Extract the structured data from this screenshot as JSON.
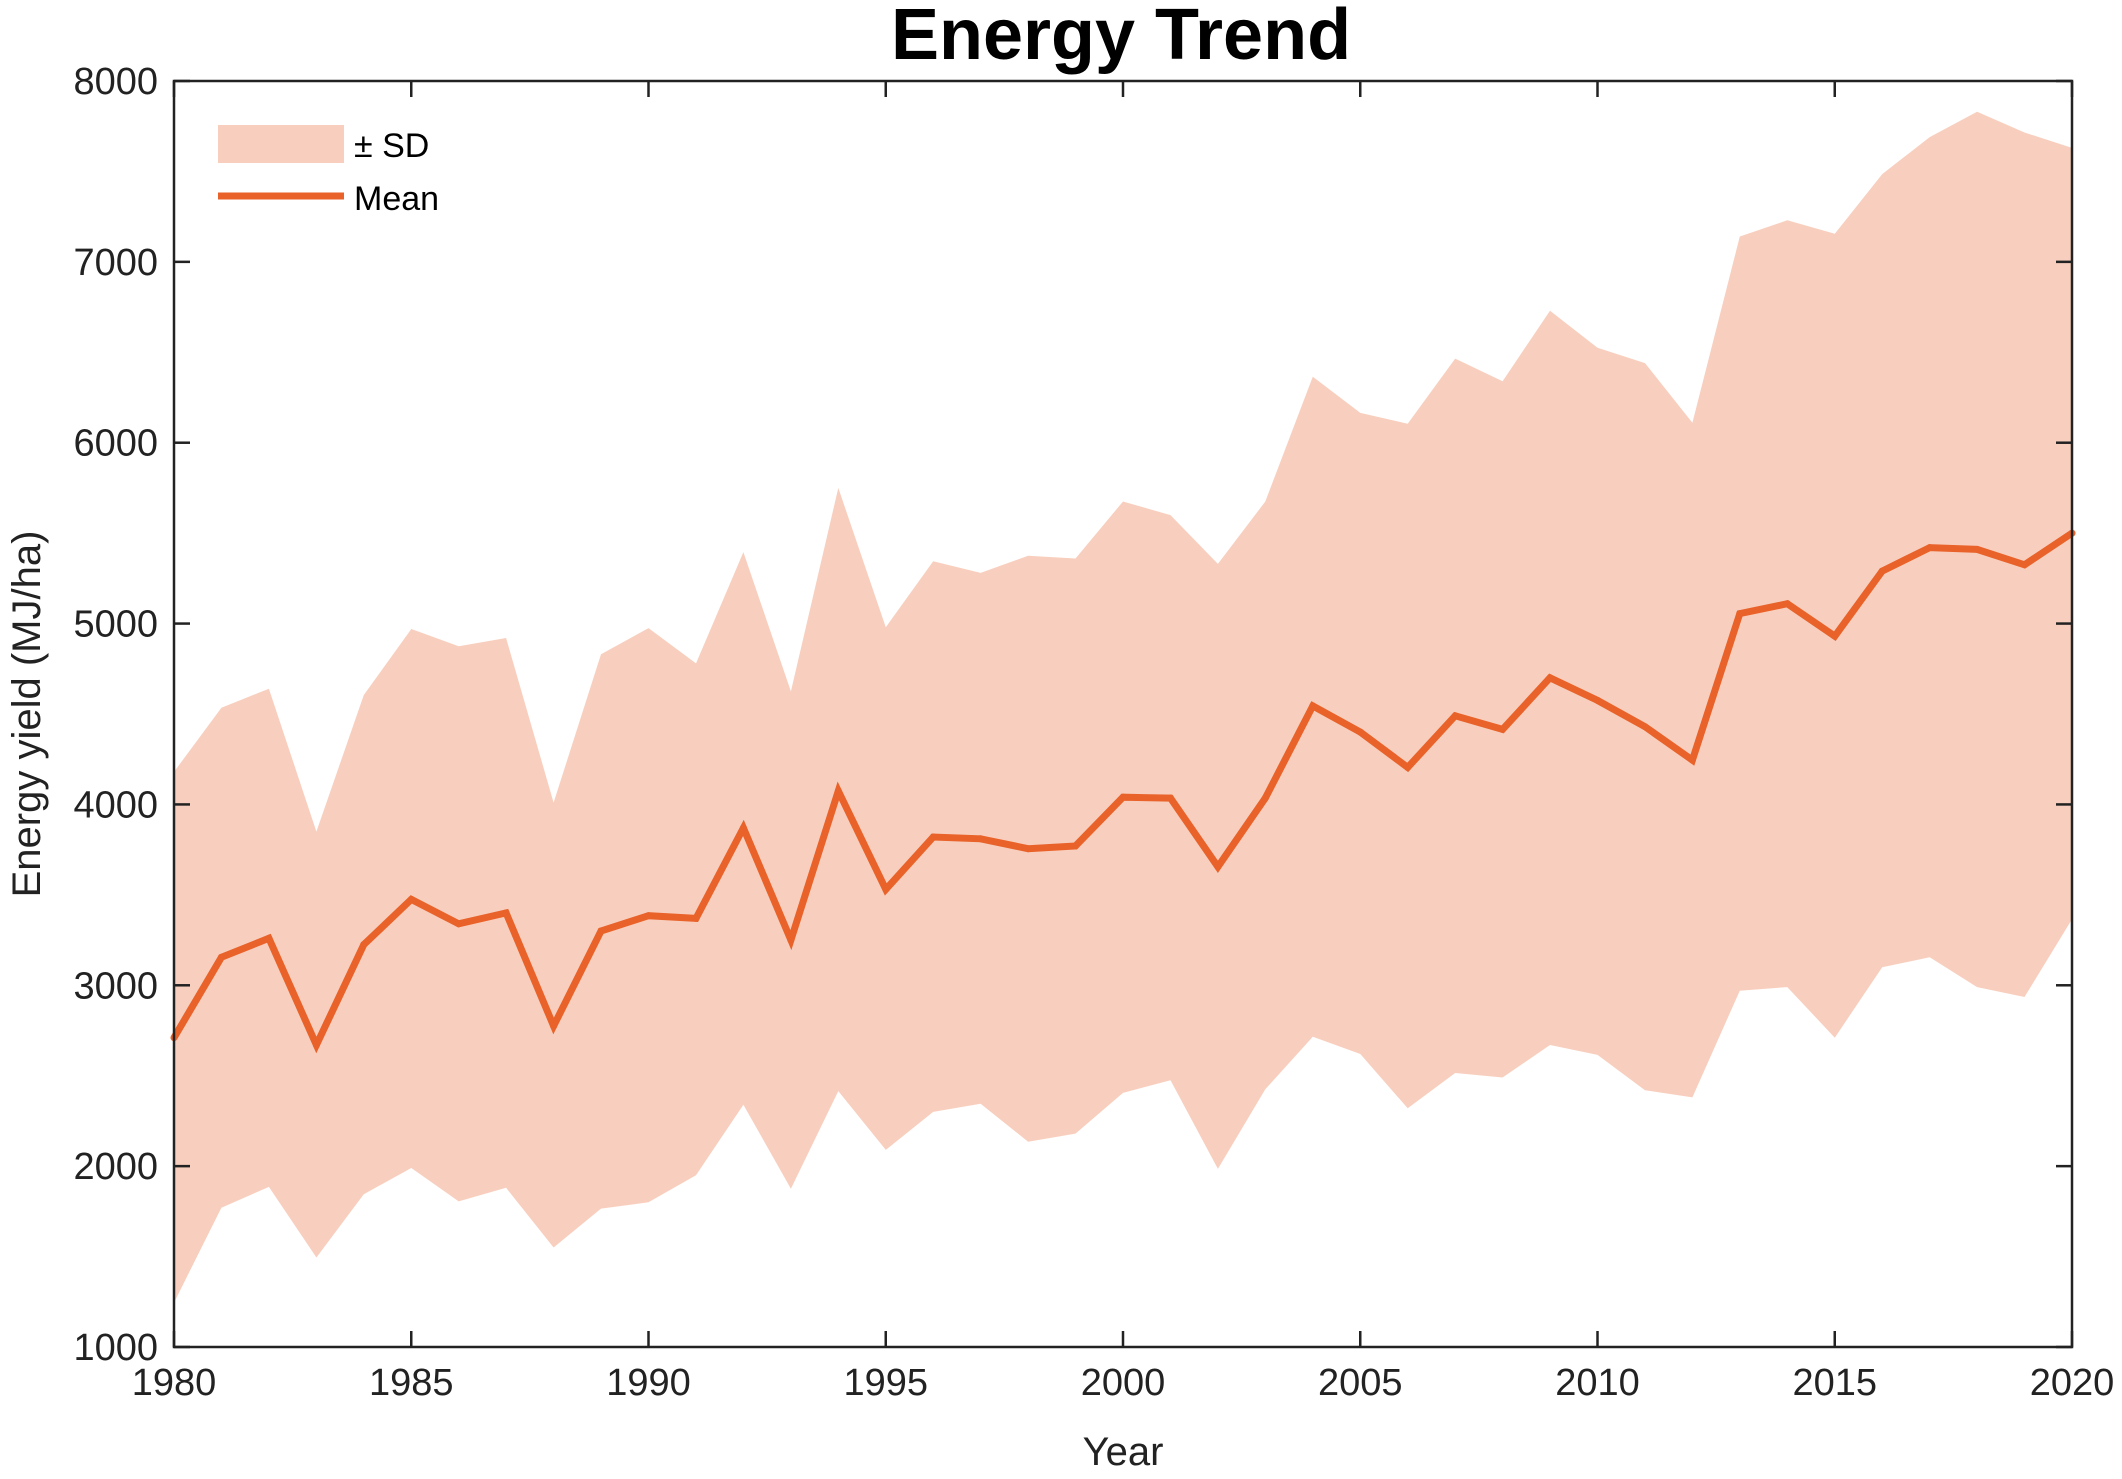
{
  "chart_data": {
    "type": "area",
    "title": "Energy Trend",
    "xlabel": "Year",
    "ylabel": "Energy yield (MJ/ha)",
    "xlim": [
      1980,
      2020
    ],
    "ylim": [
      1000,
      8000
    ],
    "xticks": [
      1980,
      1985,
      1990,
      1995,
      2000,
      2005,
      2010,
      2015,
      2020
    ],
    "yticks": [
      1000,
      2000,
      3000,
      4000,
      5000,
      6000,
      7000,
      8000
    ],
    "grid": false,
    "legend_position": "top-left",
    "legend": {
      "band": "± SD",
      "line": "Mean"
    },
    "colors": {
      "band": "#f8cfbe",
      "line": "#e8622a",
      "axis": "#222222"
    },
    "x": [
      1980,
      1981,
      1982,
      1983,
      1984,
      1985,
      1986,
      1987,
      1988,
      1989,
      1990,
      1991,
      1992,
      1993,
      1994,
      1995,
      1996,
      1997,
      1998,
      1999,
      2000,
      2001,
      2002,
      2003,
      2004,
      2005,
      2006,
      2007,
      2008,
      2009,
      2010,
      2011,
      2012,
      2013,
      2014,
      2015,
      2016,
      2017,
      2018,
      2019,
      2020
    ],
    "series": [
      {
        "name": "Mean",
        "kind": "line",
        "values": [
          2710,
          3155,
          3260,
          2670,
          3225,
          3475,
          3340,
          3400,
          2775,
          3300,
          3385,
          3370,
          3870,
          3250,
          4075,
          3530,
          3820,
          3810,
          3755,
          3770,
          4040,
          4035,
          3655,
          4035,
          4545,
          4400,
          4205,
          4490,
          4415,
          4700,
          4575,
          4430,
          4245,
          5055,
          5110,
          4930,
          5290,
          5420,
          5410,
          5325,
          5500
        ]
      },
      {
        "name": "± SD",
        "kind": "band",
        "upper": [
          4180,
          4535,
          4640,
          3850,
          4605,
          4970,
          4875,
          4920,
          4010,
          4830,
          4975,
          4780,
          5395,
          4625,
          5750,
          4980,
          5345,
          5280,
          5375,
          5360,
          5675,
          5600,
          5330,
          5675,
          6365,
          6165,
          6105,
          6465,
          6340,
          6730,
          6525,
          6440,
          6110,
          7140,
          7230,
          7155,
          7485,
          7690,
          7830,
          7715,
          7630
        ],
        "lower": [
          1245,
          1770,
          1885,
          1495,
          1845,
          1990,
          1805,
          1880,
          1550,
          1765,
          1800,
          1950,
          2340,
          1875,
          2415,
          2090,
          2300,
          2345,
          2135,
          2180,
          2405,
          2475,
          1985,
          2425,
          2715,
          2620,
          2320,
          2515,
          2490,
          2670,
          2615,
          2420,
          2380,
          2970,
          2990,
          2710,
          3100,
          3155,
          2990,
          2935,
          3365
        ]
      }
    ]
  }
}
